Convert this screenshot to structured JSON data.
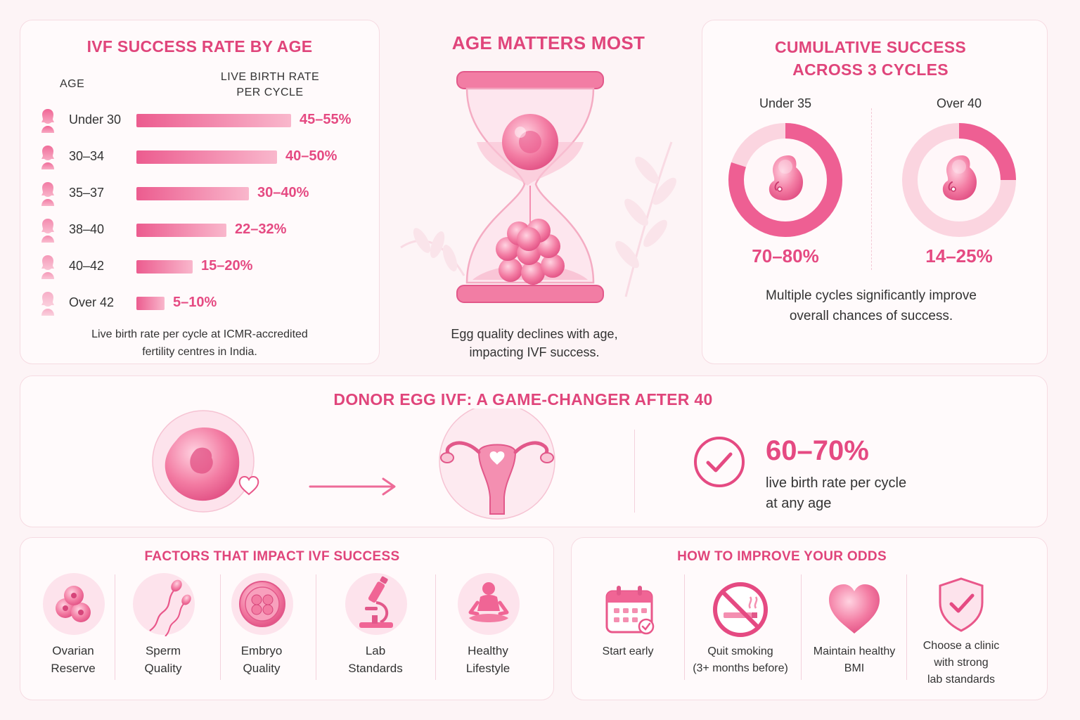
{
  "age_panel": {
    "title": "IVF SUCCESS RATE BY AGE",
    "col_age": "AGE",
    "col_rate_1": "LIVE BIRTH RATE",
    "col_rate_2": "PER CYCLE",
    "note_1": "Live birth rate per cycle at ICMR-accredited",
    "note_2": "fertility centres in India."
  },
  "chart_data": [
    {
      "type": "bar",
      "orientation": "horizontal",
      "categories": [
        "Under 30",
        "30–34",
        "35–37",
        "38–40",
        "40–42",
        "Over 42"
      ],
      "values": [
        [
          45,
          55
        ],
        [
          40,
          50
        ],
        [
          30,
          40
        ],
        [
          22,
          32
        ],
        [
          15,
          20
        ],
        [
          5,
          10
        ]
      ],
      "value_labels": [
        "45–55%",
        "40–50%",
        "30–40%",
        "22–32%",
        "15–20%",
        "5–10%"
      ],
      "title": "IVF SUCCESS RATE BY AGE",
      "xlabel": "LIVE BIRTH RATE PER CYCLE",
      "ylabel": "AGE"
    },
    {
      "type": "pie",
      "title": "CUMULATIVE SUCCESS ACROSS 3 CYCLES",
      "categories": [
        "Under 35",
        "Over 40"
      ],
      "values": [
        [
          70,
          80
        ],
        [
          14,
          25
        ]
      ],
      "value_labels": [
        "70–80%",
        "14–25%"
      ]
    }
  ],
  "middle": {
    "title": "AGE MATTERS MOST",
    "caption_1": "Egg quality declines with age,",
    "caption_2": "impacting IVF success."
  },
  "cumulative": {
    "title_1": "CUMULATIVE SUCCESS",
    "title_2": "ACROSS 3 CYCLES",
    "note_1": "Multiple cycles significantly improve",
    "note_2": "overall chances of success."
  },
  "donor": {
    "title": "DONOR EGG IVF: A GAME-CHANGER AFTER 40",
    "rate": "60–70%",
    "desc_1": "live birth rate per cycle",
    "desc_2": "at any age",
    "icons": [
      "egg-cell-icon",
      "heart-icon",
      "arrow-right-icon",
      "uterus-icon",
      "check-circle-icon"
    ]
  },
  "factors": {
    "title": "FACTORS THAT IMPACT IVF SUCCESS",
    "items": [
      {
        "l1": "Ovarian",
        "l2": "Reserve",
        "icon": "ovary-cells-icon"
      },
      {
        "l1": "Sperm",
        "l2": "Quality",
        "icon": "sperm-icon"
      },
      {
        "l1": "Embryo",
        "l2": "Quality",
        "icon": "embryo-icon"
      },
      {
        "l1": "Lab",
        "l2": "Standards",
        "icon": "microscope-icon"
      },
      {
        "l1": "Healthy",
        "l2": "Lifestyle",
        "icon": "meditation-icon"
      }
    ]
  },
  "improve": {
    "title": "HOW TO IMPROVE YOUR ODDS",
    "items": [
      {
        "l1": "Start early",
        "icon": "calendar-icon"
      },
      {
        "l1": "Quit smoking",
        "l2": "(3+ months before)",
        "icon": "no-smoking-icon"
      },
      {
        "l1": "Maintain healthy",
        "l2": "BMI",
        "icon": "heart-icon"
      },
      {
        "l1": "Choose a clinic",
        "l2": "with strong",
        "l3": "lab standards",
        "icon": "shield-check-icon"
      }
    ]
  },
  "colors": {
    "accent": "#e0457b",
    "bar_start": "#ec5c8f",
    "bar_end": "#f9b7cc",
    "ring_track": "#fbd5e0",
    "background": "#fdf4f6"
  }
}
